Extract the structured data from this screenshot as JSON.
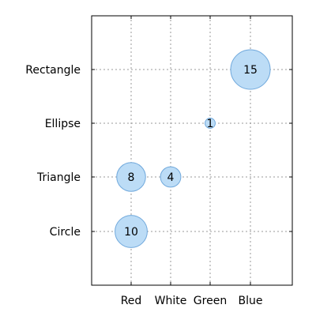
{
  "chart_data": {
    "type": "scatter",
    "title": "",
    "xlabel": "",
    "ylabel": "",
    "x_categories": [
      "Red",
      "White",
      "Green",
      "Blue"
    ],
    "y_categories": [
      "Circle",
      "Triangle",
      "Ellipse",
      "Rectangle"
    ],
    "points": [
      {
        "x": "Red",
        "y": "Circle",
        "value": 10,
        "label": "10"
      },
      {
        "x": "Red",
        "y": "Triangle",
        "value": 8,
        "label": "8"
      },
      {
        "x": "White",
        "y": "Triangle",
        "value": 4,
        "label": "4"
      },
      {
        "x": "Green",
        "y": "Ellipse",
        "value": 1,
        "label": "1"
      },
      {
        "x": "Blue",
        "y": "Rectangle",
        "value": 15,
        "label": "15"
      }
    ],
    "grid": true,
    "legend": "none",
    "colors": {
      "bubble_fill": "#bcdcf6",
      "bubble_stroke": "#6fa8dc",
      "grid": "#999999",
      "axis": "#000000"
    }
  }
}
